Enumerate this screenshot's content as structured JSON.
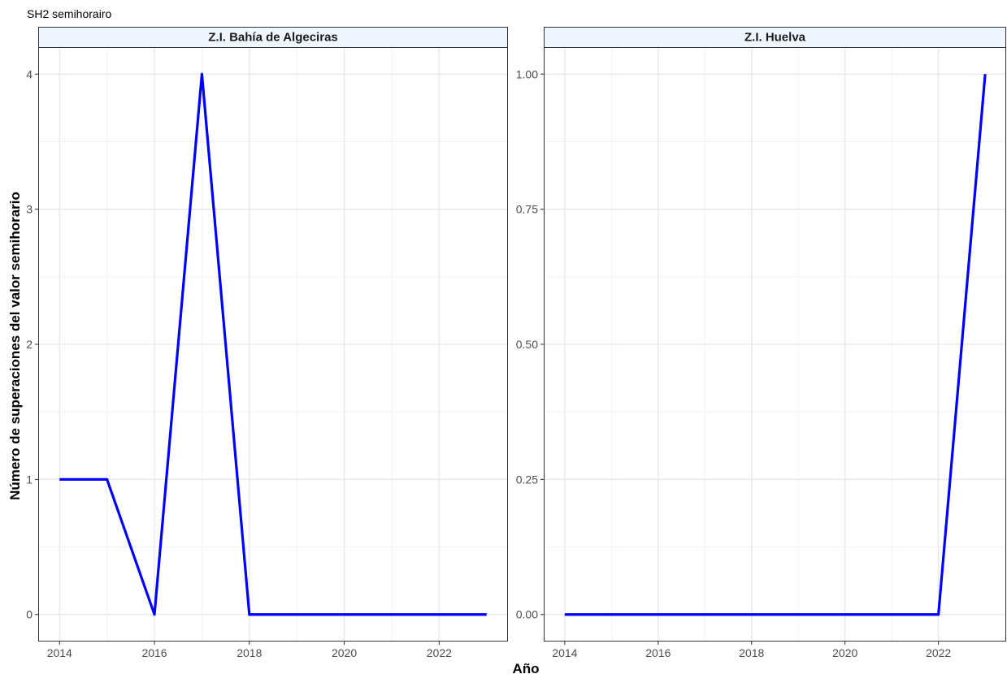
{
  "chart_data": {
    "type": "line",
    "title": "SH2 semihorairo",
    "xlabel": "Año",
    "ylabel": "Número de superaciones del valor semihorario",
    "grid": true,
    "legend": "none",
    "line_color": "#0000ff",
    "strip_fill": "#eef7ff",
    "panels": [
      {
        "name": "Z.I. Bahía de Algeciras",
        "xlim": [
          2013.55,
          2023.45
        ],
        "ylim": [
          -0.2,
          4.2
        ],
        "x_ticks": [
          2014,
          2016,
          2018,
          2020,
          2022
        ],
        "y_ticks": [
          0,
          1,
          2,
          3,
          4
        ],
        "y_tick_labels": [
          "0",
          "1",
          "2",
          "3",
          "4"
        ],
        "series": [
          {
            "x": [
              2014,
              2015,
              2016,
              2017,
              2018,
              2019,
              2020,
              2021,
              2022,
              2023
            ],
            "y": [
              1,
              1,
              0,
              4,
              0,
              0,
              0,
              0,
              0,
              0
            ]
          }
        ]
      },
      {
        "name": "Z.I. Huelva",
        "xlim": [
          2013.55,
          2023.45
        ],
        "ylim": [
          -0.05,
          1.05
        ],
        "x_ticks": [
          2014,
          2016,
          2018,
          2020,
          2022
        ],
        "y_ticks": [
          0,
          0.25,
          0.5,
          0.75,
          1
        ],
        "y_tick_labels": [
          "0.00",
          "0.25",
          "0.50",
          "0.75",
          "1.00"
        ],
        "series": [
          {
            "x": [
              2014,
              2015,
              2016,
              2017,
              2018,
              2019,
              2020,
              2021,
              2022,
              2023
            ],
            "y": [
              0,
              0,
              0,
              0,
              0,
              0,
              0,
              0,
              0,
              1
            ]
          }
        ]
      }
    ]
  }
}
